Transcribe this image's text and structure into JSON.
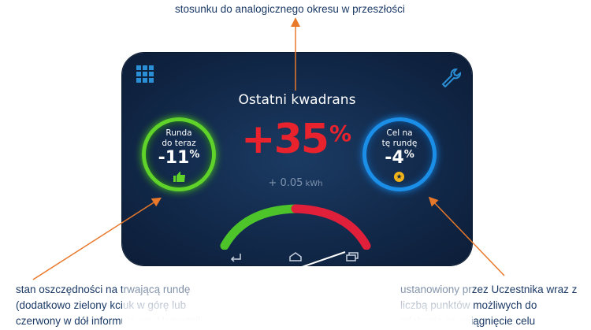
{
  "annotations": {
    "top": "stosunku do analogicznego okresu w przeszłości",
    "left_lines": [
      "stan oszczędności na trwającą rundę",
      "(dodatkowo zielony kciuk w górę lub",
      "czerwony w dół informuje czy Uczestnik"
    ],
    "right_lines": [
      "ustanowiony przez Uczestnika wraz z",
      "liczbą punktów możliwych do",
      "zdobycia za osiągnięcie celu"
    ]
  },
  "screen": {
    "title": "Ostatni kwadrans",
    "main_value": "+35",
    "main_unit": "%",
    "energy_value": "+ 0.05",
    "energy_unit": "kWh",
    "left_ring": {
      "label_line1": "Runda",
      "label_line2": "do teraz",
      "value": "-11",
      "unit": "%",
      "icon": "thumbs-up-icon"
    },
    "right_ring": {
      "label_line1": "Cel na",
      "label_line2": "tę rundę",
      "value": "-4",
      "unit": "%",
      "icon": "star-icon"
    },
    "gauge_split": 0.5,
    "colors": {
      "positive": "#5fd32a",
      "negative": "#e8232e",
      "accent": "#1b8fe8",
      "annotation": "#1b3a66",
      "arrow": "#e8782a"
    },
    "nav_icons": [
      "back-icon",
      "home-icon",
      "recent-apps-icon"
    ],
    "top_icons": [
      "apps-grid-icon",
      "wrench-icon"
    ]
  }
}
